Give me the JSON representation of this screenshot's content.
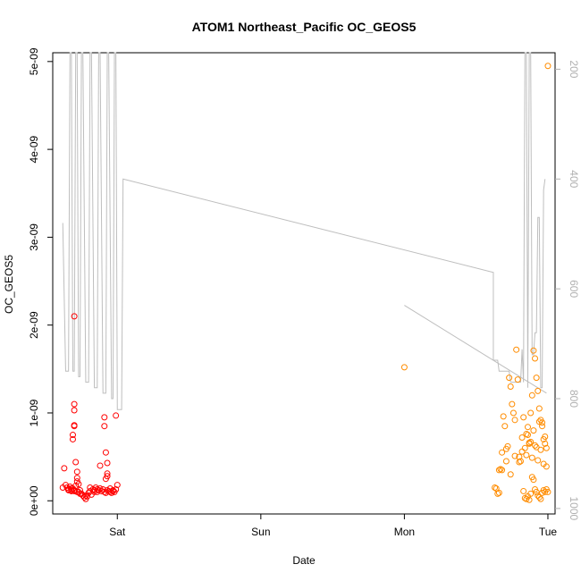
{
  "chart_data": {
    "type": "scatter",
    "title": "ATOM1 Northeast_Pacific OC_GEOS5",
    "xlabel": "Date",
    "ylabel": "OC_GEOS5",
    "x_unit": "days",
    "x_ticks": [
      {
        "label": "Sat",
        "value": 1.0
      },
      {
        "label": "Sun",
        "value": 2.0
      },
      {
        "label": "Mon",
        "value": 3.0
      },
      {
        "label": "Tue",
        "value": 4.0
      }
    ],
    "xlim": [
      0.55,
      4.05
    ],
    "ylim": [
      -1.5e-10,
      5.1e-09
    ],
    "y_ticks": [
      {
        "label": "0e+00",
        "value": 0
      },
      {
        "label": "1e-09",
        "value": 1e-09
      },
      {
        "label": "2e-09",
        "value": 2e-09
      },
      {
        "label": "3e-09",
        "value": 3e-09
      },
      {
        "label": "4e-09",
        "value": 4e-09
      },
      {
        "label": "5e-09",
        "value": 5e-09
      }
    ],
    "y2_ticks": [
      {
        "label": "200",
        "value": 200
      },
      {
        "label": "400",
        "value": 400
      },
      {
        "label": "600",
        "value": 600
      },
      {
        "label": "800",
        "value": 800
      },
      {
        "label": "1000",
        "value": 1000
      }
    ],
    "y2lim": [
      1010,
      170
    ],
    "y2_reversed": true,
    "grid": false,
    "colors": {
      "series_red": "#ff0000",
      "series_orange": "#ff8c00",
      "pressure_line": "#bebebe",
      "right_axis": "#b0b0b0"
    },
    "series": [
      {
        "color": "#ff0000",
        "x": [
          0.63,
          0.64,
          0.65,
          0.66,
          0.67,
          0.68,
          0.69,
          0.7,
          0.71,
          0.72,
          0.73,
          0.74,
          0.75,
          0.76,
          0.77,
          0.78,
          0.79,
          0.8,
          0.81,
          0.82,
          0.83,
          0.84,
          0.85,
          0.86,
          0.87,
          0.88,
          0.89,
          0.9,
          0.91,
          0.92,
          0.93,
          0.94,
          0.95,
          0.96,
          0.97,
          0.98,
          0.99,
          1.0,
          0.7,
          0.7,
          0.7,
          0.7,
          0.69,
          0.69,
          0.7,
          0.71,
          0.72,
          0.68,
          0.72,
          0.73,
          0.88,
          0.91,
          0.92,
          0.93,
          0.93,
          0.93,
          0.92,
          0.91,
          0.99,
          0.62,
          0.66,
          0.68,
          0.7,
          0.72,
          0.74,
          0.78,
          0.81,
          0.84,
          0.86,
          0.95,
          0.97
        ],
        "y": [
          3.7e-10,
          1.8e-10,
          1.5e-10,
          1.3e-10,
          1.6e-10,
          1.2e-10,
          1.4e-10,
          1.1e-10,
          1.7e-10,
          2.2e-10,
          1e-10,
          1.2e-10,
          8e-11,
          6e-11,
          4e-11,
          2e-11,
          5e-11,
          9e-11,
          1.1e-10,
          7e-11,
          1.3e-10,
          1.2e-10,
          1.5e-10,
          1e-10,
          1.2e-10,
          1.4e-10,
          1.1e-10,
          1.3e-10,
          1e-10,
          9e-11,
          1.2e-10,
          1.1e-10,
          1e-10,
          9e-11,
          1.2e-10,
          1e-10,
          1.3e-10,
          1.8e-10,
          2.1e-09,
          1.1e-09,
          8.6e-10,
          8.5e-10,
          7.5e-10,
          7e-10,
          1.03e-09,
          4.4e-10,
          3.3e-10,
          1.4e-10,
          2.6e-10,
          1.9e-10,
          4e-10,
          9.5e-10,
          5.5e-10,
          4.3e-10,
          3.1e-10,
          2.8e-10,
          2.5e-10,
          8.5e-10,
          9.7e-10,
          1.5e-10,
          1.2e-10,
          1.1e-10,
          1.2e-10,
          1e-10,
          8e-11,
          6e-11,
          1.5e-10,
          1e-10,
          1.3e-10,
          1.4e-10,
          1.1e-10
        ]
      },
      {
        "color": "#ff8c00",
        "x": [
          3.0,
          3.63,
          3.65,
          3.66,
          3.67,
          3.68,
          3.69,
          3.7,
          3.71,
          3.72,
          3.73,
          3.74,
          3.75,
          3.76,
          3.77,
          3.78,
          3.79,
          3.8,
          3.81,
          3.82,
          3.83,
          3.84,
          3.85,
          3.86,
          3.87,
          3.88,
          3.89,
          3.9,
          3.91,
          3.92,
          3.93,
          3.94,
          3.95,
          3.96,
          3.97,
          3.98,
          3.99,
          4.0,
          3.83,
          3.84,
          3.85,
          3.86,
          3.87,
          3.88,
          3.89,
          3.9,
          3.91,
          3.92,
          3.93,
          3.94,
          3.95,
          3.96,
          3.97,
          3.98,
          3.99,
          4.0,
          3.85,
          3.87,
          3.89,
          3.91,
          3.93,
          3.95,
          3.97,
          3.99,
          3.71,
          3.74,
          3.77,
          3.8,
          3.82,
          3.86,
          3.88,
          3.9,
          3.92,
          3.94,
          3.96,
          3.98,
          3.64,
          3.66,
          3.68
        ],
        "y": [
          1.52e-09,
          1.5e-10,
          8e-11,
          3.5e-10,
          3.6e-10,
          5.5e-10,
          9.6e-10,
          8.5e-10,
          4.5e-10,
          6.2e-10,
          1.4e-09,
          1.3e-09,
          1.1e-09,
          1e-09,
          9.2e-10,
          1.72e-09,
          1.38e-09,
          5e-10,
          4.5e-10,
          7.2e-10,
          9.5e-10,
          6e-10,
          7.6e-10,
          8.4e-10,
          6.5e-10,
          1e-09,
          1.2e-09,
          1.71e-09,
          1.62e-09,
          1.4e-09,
          1.25e-09,
          1.05e-09,
          9.2e-10,
          8.5e-10,
          7e-10,
          6.5e-10,
          6e-10,
          4.95e-09,
          1.1e-10,
          3e-11,
          2e-11,
          5e-11,
          1e-11,
          8e-11,
          2.7e-10,
          2.4e-10,
          1.3e-10,
          1e-10,
          6e-11,
          4e-11,
          2e-11,
          9e-11,
          1.2e-10,
          1e-10,
          1.3e-10,
          1e-10,
          5.2e-10,
          6.6e-10,
          4.9e-10,
          6.3e-10,
          4.6e-10,
          5.8e-10,
          4.2e-10,
          3.9e-10,
          5.9e-10,
          3e-10,
          5.1e-10,
          4.4e-10,
          5.6e-10,
          7.5e-10,
          6.7e-10,
          8e-10,
          6.1e-10,
          9e-10,
          8.9e-10,
          7.3e-10,
          1.4e-10,
          9e-11,
          3.5e-10
        ]
      }
    ],
    "pressure_line": [
      [
        0.62,
        480
      ],
      [
        0.64,
        750
      ],
      [
        0.66,
        750
      ],
      [
        0.67,
        170
      ],
      [
        0.68,
        170
      ],
      [
        0.69,
        750
      ],
      [
        0.7,
        750
      ],
      [
        0.71,
        170
      ],
      [
        0.72,
        170
      ],
      [
        0.73,
        760
      ],
      [
        0.74,
        760
      ],
      [
        0.75,
        170
      ],
      [
        0.76,
        170
      ],
      [
        0.78,
        770
      ],
      [
        0.8,
        770
      ],
      [
        0.81,
        170
      ],
      [
        0.82,
        170
      ],
      [
        0.84,
        780
      ],
      [
        0.86,
        780
      ],
      [
        0.87,
        170
      ],
      [
        0.88,
        170
      ],
      [
        0.9,
        790
      ],
      [
        0.92,
        790
      ],
      [
        0.93,
        170
      ],
      [
        0.94,
        170
      ],
      [
        0.96,
        800
      ],
      [
        0.97,
        800
      ],
      [
        0.98,
        170
      ],
      [
        0.99,
        170
      ],
      [
        1.0,
        820
      ],
      [
        1.03,
        820
      ],
      [
        1.04,
        400
      ],
      [
        3.62,
        570
      ],
      [
        3.62,
        730
      ],
      [
        3.65,
        730
      ],
      [
        3.66,
        750
      ],
      [
        3.73,
        750
      ],
      [
        3.74,
        770
      ],
      [
        3.81,
        770
      ],
      [
        3.82,
        710
      ],
      [
        3.83,
        770
      ],
      [
        3.84,
        170
      ],
      [
        3.85,
        170
      ],
      [
        3.86,
        780
      ],
      [
        3.87,
        170
      ],
      [
        3.88,
        170
      ],
      [
        3.89,
        720
      ],
      [
        3.9,
        720
      ],
      [
        3.91,
        680
      ],
      [
        3.92,
        680
      ],
      [
        3.93,
        470
      ],
      [
        3.94,
        470
      ],
      [
        3.95,
        780
      ],
      [
        3.96,
        780
      ],
      [
        3.97,
        420
      ],
      [
        3.98,
        400
      ]
    ],
    "pressure_line_2": [
      [
        3.0,
        630
      ],
      [
        3.99,
        790
      ]
    ]
  }
}
